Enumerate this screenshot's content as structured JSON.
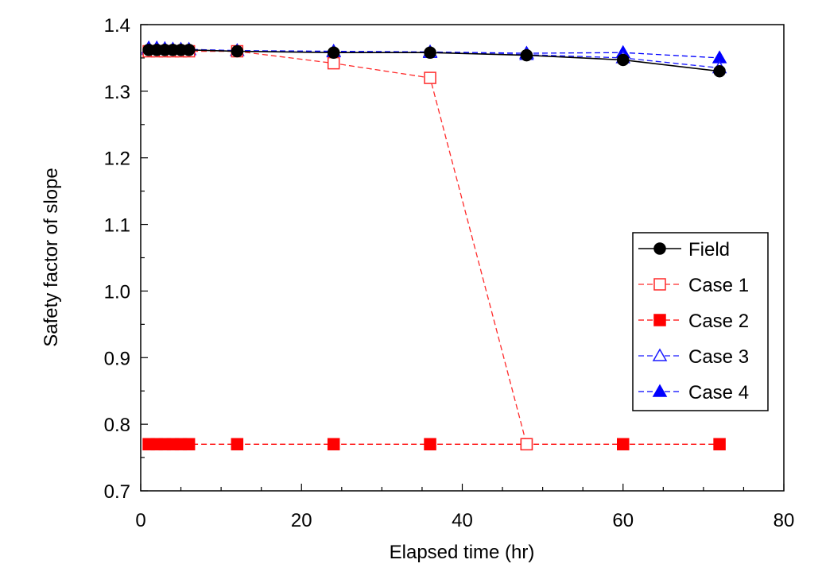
{
  "chart_data": {
    "type": "line",
    "title": "",
    "xlabel": "Elapsed time (hr)",
    "ylabel": "Safety factor of slope",
    "xlim": [
      0,
      80
    ],
    "ylim": [
      0.7,
      1.4
    ],
    "x_ticks": [
      0,
      20,
      40,
      60,
      80
    ],
    "y_ticks": [
      0.7,
      0.8,
      0.9,
      1.0,
      1.1,
      1.2,
      1.3,
      1.4
    ],
    "x_tick_labels": [
      "0",
      "20",
      "40",
      "60",
      "80"
    ],
    "y_tick_labels": [
      "0.7",
      "0.8",
      "0.9",
      "1.0",
      "1.1",
      "1.2",
      "1.3",
      "1.4"
    ],
    "grid": false,
    "legend_position": "right",
    "series": [
      {
        "name": "Field",
        "color": "#000000",
        "line": "solid",
        "marker": "circle",
        "filled": true,
        "x": [
          1,
          2,
          3,
          4,
          5,
          6,
          12,
          24,
          36,
          48,
          60,
          72
        ],
        "y": [
          1.362,
          1.362,
          1.362,
          1.362,
          1.362,
          1.362,
          1.36,
          1.358,
          1.358,
          1.354,
          1.347,
          1.33
        ]
      },
      {
        "name": "Case 1",
        "color": "#ff2a2a",
        "line": "dashed",
        "marker": "square",
        "filled": false,
        "x": [
          1,
          2,
          3,
          4,
          5,
          6,
          12,
          24,
          36,
          48
        ],
        "y": [
          1.36,
          1.36,
          1.36,
          1.36,
          1.36,
          1.36,
          1.36,
          1.342,
          1.32,
          0.77
        ]
      },
      {
        "name": "Case 2",
        "color": "#ff0000",
        "line": "dashed",
        "marker": "square",
        "filled": true,
        "x": [
          1,
          2,
          3,
          4,
          5,
          6,
          12,
          24,
          36,
          48,
          60,
          72
        ],
        "y": [
          0.77,
          0.77,
          0.77,
          0.77,
          0.77,
          0.77,
          0.77,
          0.77,
          0.77,
          0.77,
          0.77,
          0.77
        ]
      },
      {
        "name": "Case 3",
        "color": "#1a1aff",
        "line": "dashed",
        "marker": "triangle",
        "filled": false,
        "x": [
          1,
          2,
          3,
          4,
          5,
          6,
          12,
          24,
          36,
          48,
          60,
          72
        ],
        "y": [
          1.363,
          1.363,
          1.363,
          1.363,
          1.363,
          1.363,
          1.361,
          1.359,
          1.358,
          1.355,
          1.35,
          1.335
        ]
      },
      {
        "name": "Case 4",
        "color": "#0000ff",
        "line": "dashed",
        "marker": "triangle",
        "filled": true,
        "x": [
          1,
          2,
          3,
          4,
          5,
          6,
          12,
          24,
          36,
          48,
          60,
          72
        ],
        "y": [
          1.365,
          1.365,
          1.364,
          1.363,
          1.362,
          1.362,
          1.361,
          1.36,
          1.359,
          1.357,
          1.358,
          1.35
        ]
      }
    ]
  }
}
